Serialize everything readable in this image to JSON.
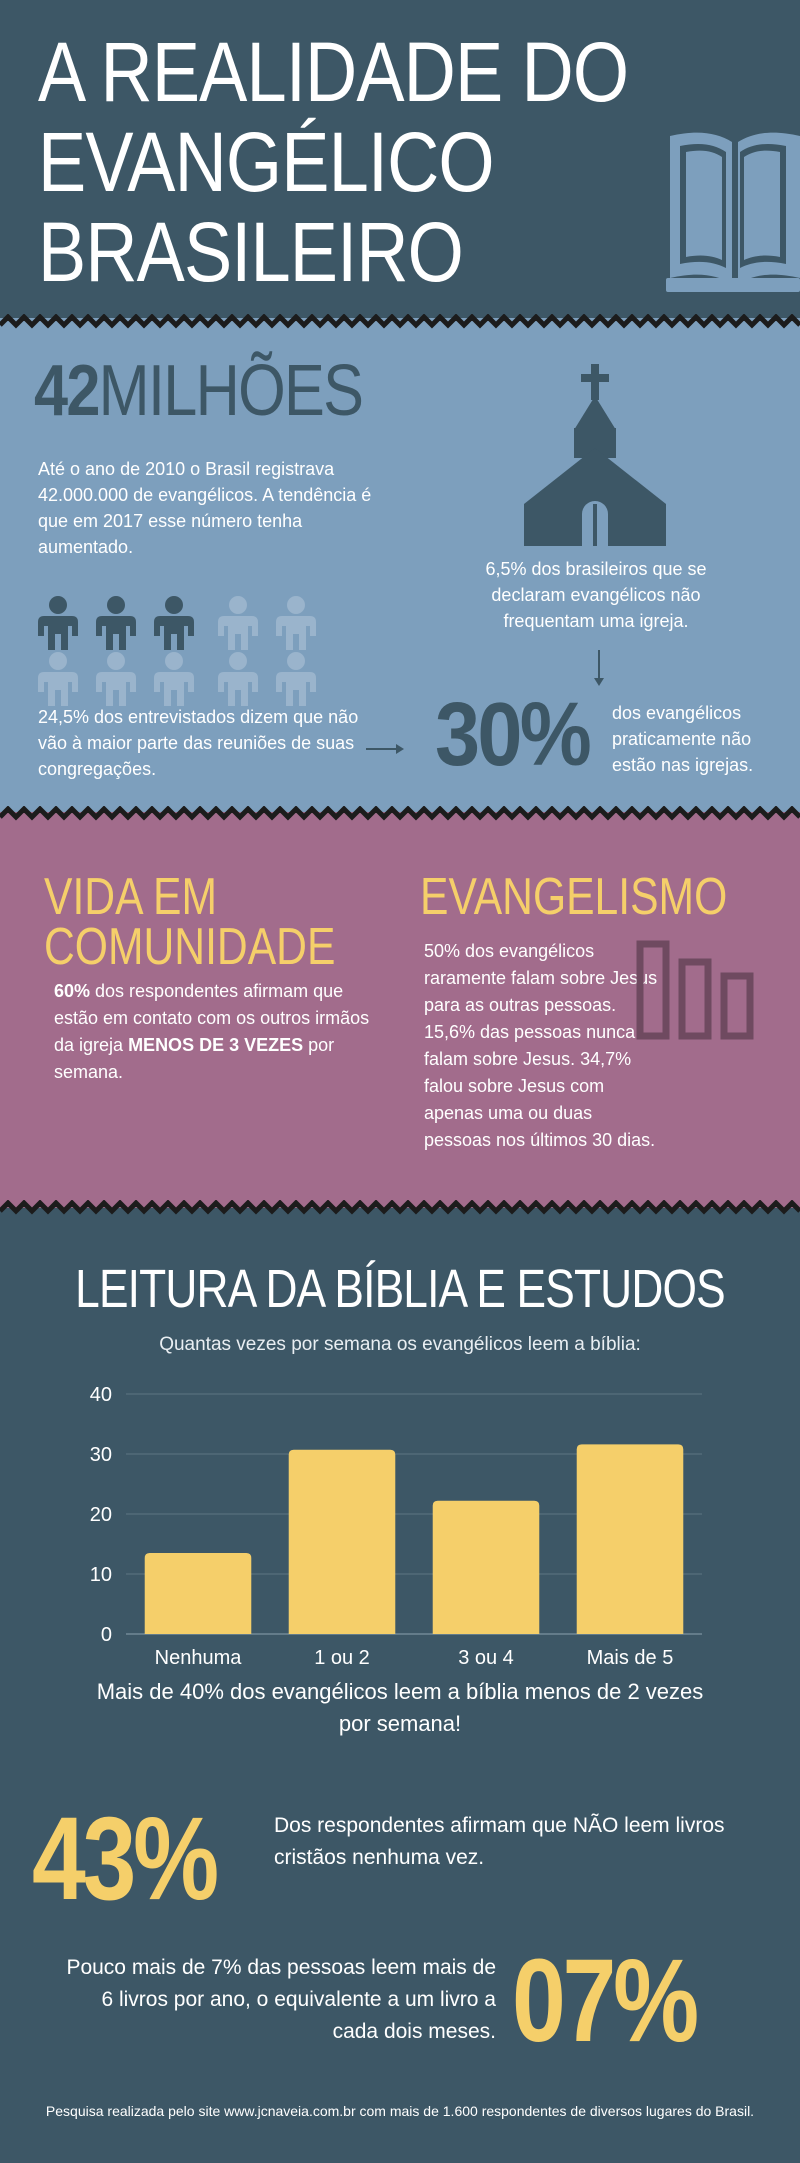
{
  "header": {
    "title_line1": "A REALIDADE DO",
    "title_line2": "EVANGÉLICO",
    "title_line3": "BRASILEIRO",
    "icon": "open-book-icon"
  },
  "stats": {
    "big_number": "42",
    "big_word": "MILHÕES",
    "intro_text": "Até o ano de 2010 o Brasil registrava 42.000.000 de evangélicos. A tendência é que em 2017 esse número tenha aumentado.",
    "church_icon": "church-icon",
    "church_text": "6,5% dos brasileiros que se declaram evangélicos não frequentam uma igreja.",
    "people_text": "24,5% dos entrevistados dizem que não vão à maior parte das reuniões de suas congregações.",
    "pct_value": "30%",
    "pct_text": "dos evangélicos praticamente não estão nas igrejas."
  },
  "community": {
    "title_line1": "VIDA EM",
    "title_line2": "COMUNIDADE",
    "text_bold1": "60%",
    "text_part1": " dos respondentes afirmam que estão em contato com os outros irmãos da igreja ",
    "text_bold2": "MENOS DE 3 VEZES",
    "text_part2": " por semana."
  },
  "evangelism": {
    "title": "EVANGELISMO",
    "text": "50% dos evangélicos raramente falam sobre Jesus para as outras pessoas. 15,6% das pessoas nunca falam sobre Jesus. 34,7% falou sobre Jesus com apenas uma ou duas pessoas nos últimos 30 dias.",
    "icon": "bar-chart-icon"
  },
  "bible": {
    "title": "LEITURA DA BÍBLIA E ESTUDOS",
    "chart_subtitle": "Quantas vezes por semana os evangélicos leem a bíblia:",
    "chart_note": "Mais de 40% dos evangélicos leem a bíblia menos de 2 vezes por semana!",
    "stat1_value": "43%",
    "stat1_text": "Dos respondentes afirmam que NÃO leem livros cristãos nenhuma vez.",
    "stat2_value": "07%",
    "stat2_text": "Pouco mais de 7% das pessoas leem mais de 6 livros por ano, o equivalente a um livro a cada dois meses."
  },
  "chart_data": {
    "type": "bar",
    "categories": [
      "Nenhuma",
      "1 ou 2",
      "3 ou 4",
      "Mais de 5"
    ],
    "values": [
      13.5,
      30.7,
      22.2,
      31.6
    ],
    "ylim": [
      0,
      40
    ],
    "yticks": [
      "0",
      "10",
      "20",
      "30",
      "40"
    ],
    "grid": true,
    "bar_color": "#f5cf6a"
  },
  "footer": {
    "text": "Pesquisa realizada pelo site www.jcnaveia.com.br com mais de 1.600 respondentes de diversos lugares do Brasil."
  },
  "colors": {
    "dark_slate": "#3d5766",
    "light_blue": "#7d9fbd",
    "mauve": "#a26c8c",
    "yellow": "#f5cf6a"
  }
}
